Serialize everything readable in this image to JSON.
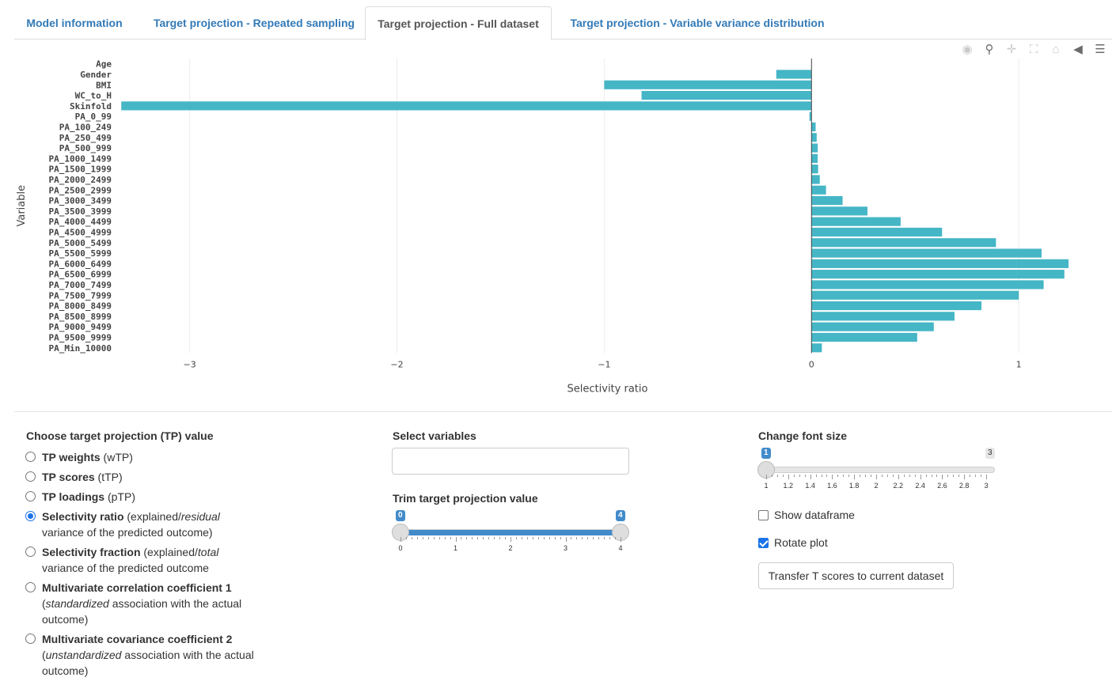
{
  "tabs": [
    {
      "label": "Model information",
      "active": false
    },
    {
      "label": "Target projection - Repeated sampling",
      "active": false
    },
    {
      "label": "Target projection - Full dataset",
      "active": true
    },
    {
      "label": "Target projection - Variable variance distribution",
      "active": false
    }
  ],
  "modebar": [
    "camera-icon",
    "zoom-icon",
    "pan-icon",
    "autoscale-icon",
    "home-icon",
    "hover-closest-icon",
    "hover-compare-icon"
  ],
  "chart_data": {
    "type": "bar",
    "orientation": "horizontal",
    "xlabel": "Selectivity ratio",
    "ylabel": "Variable",
    "xlim": [
      -3.35,
      1.45
    ],
    "xticks": [
      -3,
      -2,
      -1,
      0,
      1
    ],
    "xtick_labels": [
      "−3",
      "−2",
      "−1",
      "0",
      "1"
    ],
    "bar_color": "#45b6c6",
    "categories": [
      "Age",
      "Gender",
      "BMI",
      "WC_to_H",
      "Skinfold",
      "PA_0_99",
      "PA_100_249",
      "PA_250_499",
      "PA_500_999",
      "PA_1000_1499",
      "PA_1500_1999",
      "PA_2000_2499",
      "PA_2500_2999",
      "PA_3000_3499",
      "PA_3500_3999",
      "PA_4000_4499",
      "PA_4500_4999",
      "PA_5000_5499",
      "PA_5500_5999",
      "PA_6000_6499",
      "PA_6500_6999",
      "PA_7000_7499",
      "PA_7500_7999",
      "PA_8000_8499",
      "PA_8500_8999",
      "PA_9000_9499",
      "PA_9500_9999",
      "PA_Min_10000"
    ],
    "values": [
      0.0,
      -0.17,
      -1.0,
      -0.82,
      -3.33,
      -0.01,
      0.02,
      0.025,
      0.03,
      0.03,
      0.032,
      0.04,
      0.07,
      0.15,
      0.27,
      0.43,
      0.63,
      0.89,
      1.11,
      1.24,
      1.22,
      1.12,
      1.0,
      0.82,
      0.69,
      0.59,
      0.51,
      0.05
    ]
  },
  "controls": {
    "tp_title": "Choose target projection (TP) value",
    "tp_options": [
      {
        "bold": "TP weights",
        "rest": " (wTP)",
        "rest2": "",
        "line2": "",
        "line3": "",
        "checked": false
      },
      {
        "bold": "TP scores",
        "rest": " (tTP)",
        "rest2": "",
        "line2": "",
        "line3": "",
        "checked": false
      },
      {
        "bold": "TP loadings",
        "rest": " (pTP)",
        "rest2": "",
        "line2": "",
        "line3": "",
        "checked": false
      },
      {
        "bold": "Selectivity ratio",
        "rest": " (explained/",
        "rest_italic": "residual",
        "line2": "variance of the predicted outcome)",
        "line3": "",
        "checked": true
      },
      {
        "bold": "Selectivity fraction",
        "rest": " (explained/",
        "rest_italic": "total",
        "line2": "variance of the predicted outcome",
        "line3": "",
        "checked": false
      },
      {
        "bold": "Multivariate correlation coefficient 1",
        "rest": "",
        "line2_pre": "(",
        "line2_italic": "standardized",
        "line2": " association with the actual",
        "line3": "outcome)",
        "checked": false
      },
      {
        "bold": "Multivariate covariance coefficient 2",
        "rest": "",
        "line2_pre": "(",
        "line2_italic": "unstandardized",
        "line2": " association with the actual",
        "line3": "outcome)",
        "checked": false
      }
    ],
    "select_vars_title": "Select variables",
    "select_vars_value": "",
    "trim_title": "Trim target projection value",
    "trim_slider": {
      "min": 0,
      "max": 4,
      "from": 0,
      "to": 4,
      "ticks": [
        "0",
        "1",
        "2",
        "3",
        "4"
      ],
      "from_label": "0",
      "to_label": "4"
    },
    "font_title": "Change font size",
    "font_slider": {
      "min": 1,
      "max": 3,
      "value": 1,
      "ticks": [
        "1",
        "1.2",
        "1.4",
        "1.6",
        "1.8",
        "2",
        "2.2",
        "2.4",
        "2.6",
        "2.8",
        "3"
      ],
      "value_label": "1",
      "max_label": "3"
    },
    "show_dataframe_label": "Show dataframe",
    "show_dataframe_checked": false,
    "rotate_plot_label": "Rotate plot",
    "rotate_plot_checked": true,
    "transfer_button": "Transfer T scores to current dataset"
  }
}
